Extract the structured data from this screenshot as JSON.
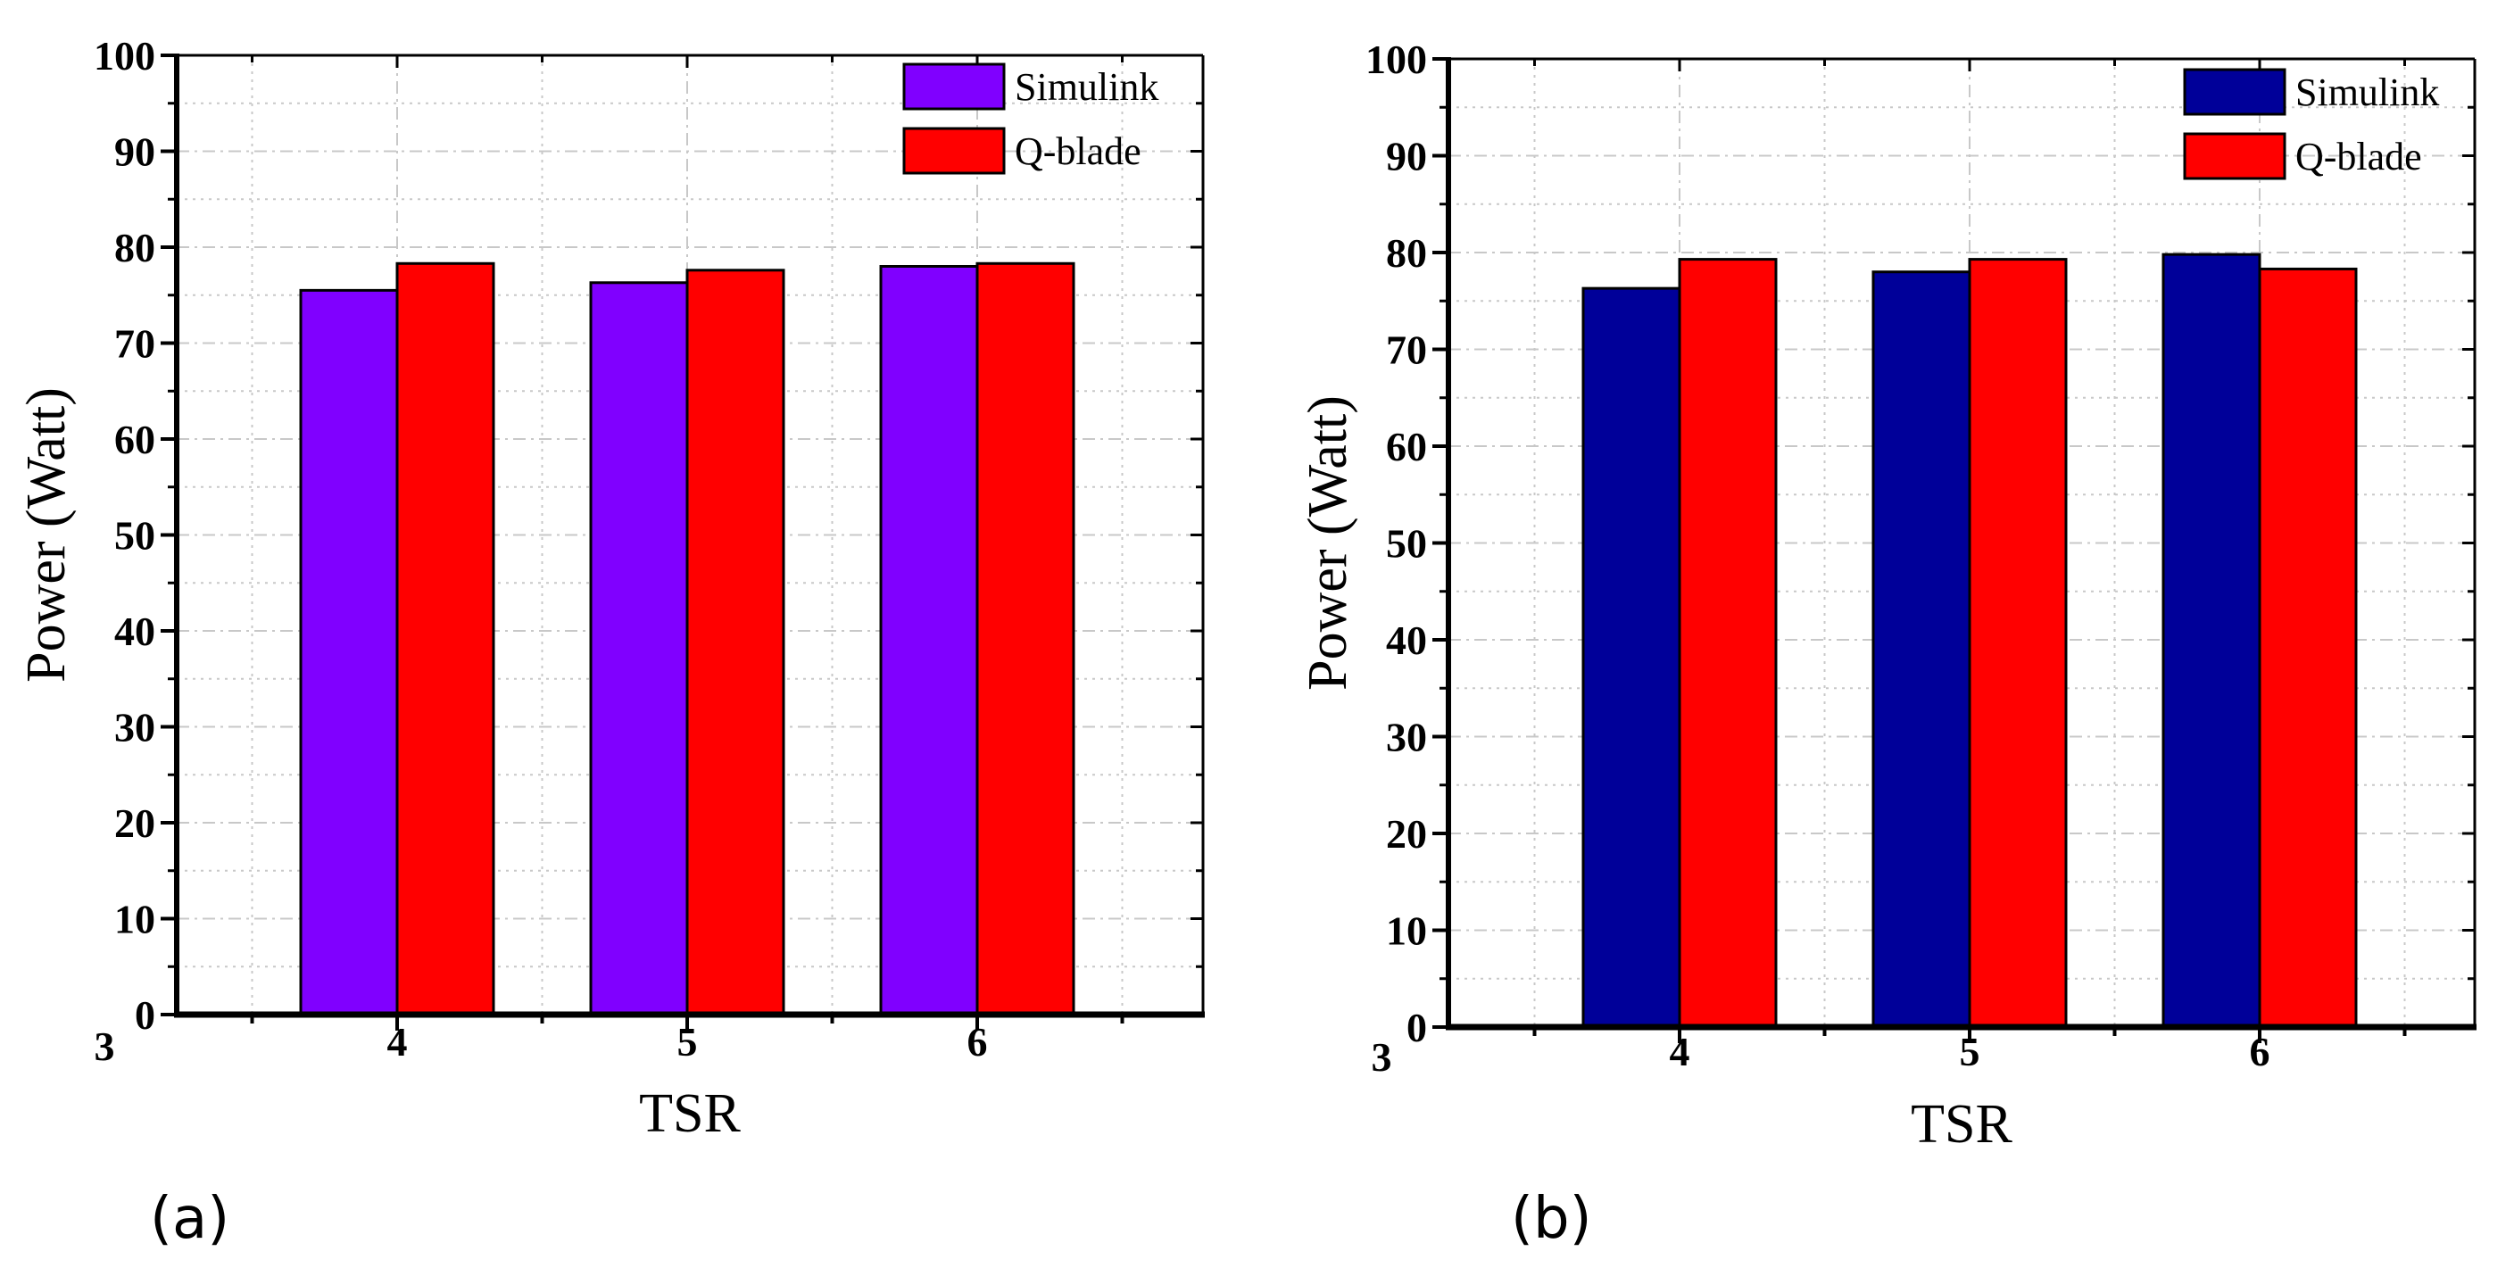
{
  "chart_data": [
    {
      "type": "bar",
      "panel_label": "(a)",
      "categories": [
        "4",
        "5",
        "6"
      ],
      "series": [
        {
          "name": "Simulink",
          "color": "#8000ff",
          "values": [
            75.5,
            76.3,
            78.0
          ]
        },
        {
          "name": "Q-blade",
          "color": "#ff0000",
          "values": [
            78.3,
            77.6,
            78.3
          ]
        }
      ],
      "xlabel": "TSR",
      "ylabel": "Power (Watt)",
      "ylim": [
        0,
        100
      ],
      "yticks": [
        0,
        10,
        20,
        30,
        40,
        50,
        60,
        70,
        80,
        90,
        100
      ],
      "x_start_label": "3",
      "grid": true,
      "legend": "top-right"
    },
    {
      "type": "bar",
      "panel_label": "(b)",
      "categories": [
        "4",
        "5",
        "6"
      ],
      "series": [
        {
          "name": "Simulink",
          "color": "#000099",
          "values": [
            76.3,
            78.0,
            79.8
          ]
        },
        {
          "name": "Q-blade",
          "color": "#ff0000",
          "values": [
            79.3,
            79.3,
            78.3
          ]
        }
      ],
      "xlabel": "TSR",
      "ylabel": "Power (Watt)",
      "ylim": [
        0,
        100
      ],
      "yticks": [
        0,
        10,
        20,
        30,
        40,
        50,
        60,
        70,
        80,
        90,
        100
      ],
      "x_start_label": "3",
      "grid": true,
      "legend": "top-right"
    }
  ]
}
